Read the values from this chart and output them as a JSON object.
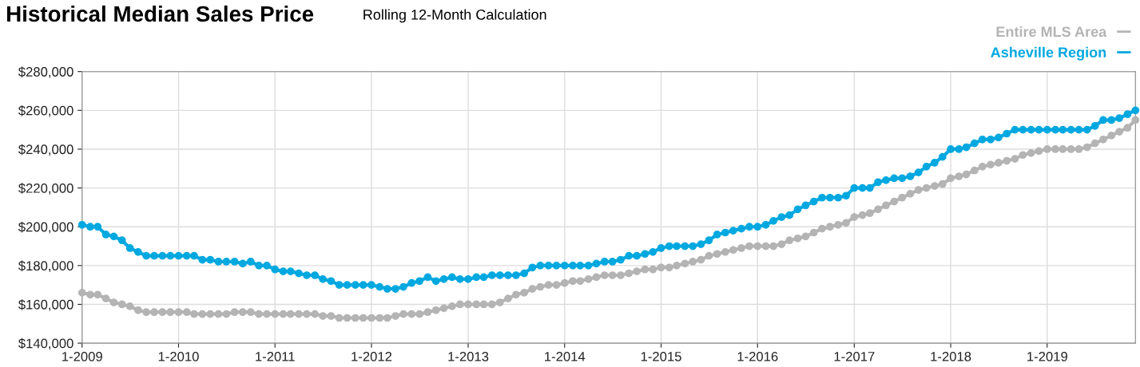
{
  "chart_data": {
    "type": "line",
    "title": "Historical Median Sales Price",
    "subtitle": "Rolling 12-Month Calculation",
    "x": [
      "2009-01",
      "2009-02",
      "2009-03",
      "2009-04",
      "2009-05",
      "2009-06",
      "2009-07",
      "2009-08",
      "2009-09",
      "2009-10",
      "2009-11",
      "2009-12",
      "2010-01",
      "2010-02",
      "2010-03",
      "2010-04",
      "2010-05",
      "2010-06",
      "2010-07",
      "2010-08",
      "2010-09",
      "2010-10",
      "2010-11",
      "2010-12",
      "2011-01",
      "2011-02",
      "2011-03",
      "2011-04",
      "2011-05",
      "2011-06",
      "2011-07",
      "2011-08",
      "2011-09",
      "2011-10",
      "2011-11",
      "2011-12",
      "2012-01",
      "2012-02",
      "2012-03",
      "2012-04",
      "2012-05",
      "2012-06",
      "2012-07",
      "2012-08",
      "2012-09",
      "2012-10",
      "2012-11",
      "2012-12",
      "2013-01",
      "2013-02",
      "2013-03",
      "2013-04",
      "2013-05",
      "2013-06",
      "2013-07",
      "2013-08",
      "2013-09",
      "2013-10",
      "2013-11",
      "2013-12",
      "2014-01",
      "2014-02",
      "2014-03",
      "2014-04",
      "2014-05",
      "2014-06",
      "2014-07",
      "2014-08",
      "2014-09",
      "2014-10",
      "2014-11",
      "2014-12",
      "2015-01",
      "2015-02",
      "2015-03",
      "2015-04",
      "2015-05",
      "2015-06",
      "2015-07",
      "2015-08",
      "2015-09",
      "2015-10",
      "2015-11",
      "2015-12",
      "2016-01",
      "2016-02",
      "2016-03",
      "2016-04",
      "2016-05",
      "2016-06",
      "2016-07",
      "2016-08",
      "2016-09",
      "2016-10",
      "2016-11",
      "2016-12",
      "2017-01",
      "2017-02",
      "2017-03",
      "2017-04",
      "2017-05",
      "2017-06",
      "2017-07",
      "2017-08",
      "2017-09",
      "2017-10",
      "2017-11",
      "2017-12",
      "2018-01",
      "2018-02",
      "2018-03",
      "2018-04",
      "2018-05",
      "2018-06",
      "2018-07",
      "2018-08",
      "2018-09",
      "2018-10",
      "2018-11",
      "2018-12",
      "2019-01",
      "2019-02",
      "2019-03",
      "2019-04",
      "2019-05",
      "2019-06",
      "2019-07",
      "2019-08",
      "2019-09",
      "2019-10",
      "2019-11",
      "2019-12"
    ],
    "series": [
      {
        "name": "Entire MLS Area",
        "color": "#b3b4b3",
        "values": [
          166000,
          165000,
          165000,
          163000,
          161000,
          160000,
          159000,
          157000,
          156000,
          156000,
          156000,
          156000,
          156000,
          156000,
          155000,
          155000,
          155000,
          155000,
          155000,
          156000,
          156000,
          156000,
          155000,
          155000,
          155000,
          155000,
          155000,
          155000,
          155000,
          155000,
          154000,
          154000,
          153000,
          153000,
          153000,
          153000,
          153000,
          153000,
          153000,
          154000,
          155000,
          155000,
          155000,
          156000,
          157000,
          158000,
          159000,
          160000,
          160000,
          160000,
          160000,
          160000,
          161000,
          163000,
          165000,
          166000,
          168000,
          169000,
          170000,
          170000,
          171000,
          172000,
          172000,
          173000,
          174000,
          175000,
          175000,
          175000,
          176000,
          177000,
          178000,
          178000,
          179000,
          179000,
          180000,
          181000,
          182000,
          183000,
          185000,
          186000,
          187000,
          188000,
          189000,
          190000,
          190000,
          190000,
          190000,
          191000,
          193000,
          194000,
          195000,
          197000,
          199000,
          200000,
          201000,
          202000,
          205000,
          206000,
          207000,
          209000,
          211000,
          213000,
          215000,
          217000,
          219000,
          220000,
          221000,
          222000,
          225000,
          226000,
          227000,
          229000,
          231000,
          232000,
          233000,
          234000,
          235000,
          237000,
          238000,
          239000,
          240000,
          240000,
          240000,
          240000,
          240000,
          241000,
          243000,
          245000,
          247000,
          249000,
          251000,
          255000
        ]
      },
      {
        "name": "Asheville Region",
        "color": "#00a8e0",
        "values": [
          201000,
          200000,
          200000,
          196000,
          195000,
          193000,
          189000,
          187000,
          185000,
          185000,
          185000,
          185000,
          185000,
          185000,
          185000,
          183000,
          183000,
          182000,
          182000,
          182000,
          181000,
          182000,
          180000,
          180000,
          178000,
          177000,
          177000,
          176000,
          175000,
          175000,
          173000,
          172000,
          170000,
          170000,
          170000,
          170000,
          170000,
          169000,
          168000,
          168000,
          169000,
          171000,
          172000,
          174000,
          172000,
          173000,
          174000,
          173000,
          173000,
          174000,
          174000,
          175000,
          175000,
          175000,
          175000,
          176000,
          179000,
          180000,
          180000,
          180000,
          180000,
          180000,
          180000,
          180000,
          181000,
          182000,
          182000,
          183000,
          185000,
          185000,
          186000,
          187000,
          189000,
          190000,
          190000,
          190000,
          190000,
          191000,
          193000,
          196000,
          197000,
          198000,
          199000,
          200000,
          200000,
          201000,
          203000,
          205000,
          206000,
          209000,
          211000,
          213000,
          215000,
          215000,
          215000,
          216000,
          220000,
          220000,
          220000,
          223000,
          224000,
          225000,
          225000,
          226000,
          228000,
          231000,
          233000,
          236000,
          240000,
          240000,
          241000,
          243000,
          245000,
          245000,
          246000,
          248000,
          250000,
          250000,
          250000,
          250000,
          250000,
          250000,
          250000,
          250000,
          250000,
          250000,
          252000,
          255000,
          255000,
          256000,
          258000,
          260000
        ]
      }
    ],
    "xlim": [
      "2009-01",
      "2019-12"
    ],
    "xticks": [
      {
        "value": "2009-01",
        "label": "1-2009"
      },
      {
        "value": "2010-01",
        "label": "1-2010"
      },
      {
        "value": "2011-01",
        "label": "1-2011"
      },
      {
        "value": "2012-01",
        "label": "1-2012"
      },
      {
        "value": "2013-01",
        "label": "1-2013"
      },
      {
        "value": "2014-01",
        "label": "1-2014"
      },
      {
        "value": "2015-01",
        "label": "1-2015"
      },
      {
        "value": "2016-01",
        "label": "1-2016"
      },
      {
        "value": "2017-01",
        "label": "1-2017"
      },
      {
        "value": "2018-01",
        "label": "1-2018"
      },
      {
        "value": "2019-01",
        "label": "1-2019"
      }
    ],
    "ylim": [
      140000,
      280000
    ],
    "yticks": [
      {
        "value": 140000,
        "label": "$140,000"
      },
      {
        "value": 160000,
        "label": "$160,000"
      },
      {
        "value": 180000,
        "label": "$180,000"
      },
      {
        "value": 200000,
        "label": "$200,000"
      },
      {
        "value": 220000,
        "label": "$220,000"
      },
      {
        "value": 240000,
        "label": "$240,000"
      },
      {
        "value": 260000,
        "label": "$260,000"
      },
      {
        "value": 280000,
        "label": "$280,000"
      }
    ],
    "grid": true,
    "legend": "top right",
    "marker": "circle",
    "line_style": "solid"
  }
}
